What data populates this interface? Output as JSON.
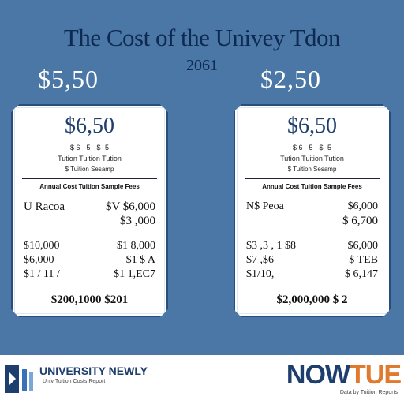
{
  "header": {
    "title": "The Cost of the Univey Tdon",
    "year": "2061",
    "left_total": "$5,50",
    "right_total": "$2,50"
  },
  "cards": [
    {
      "price": "$6,50",
      "sub1": "$ 6 · 5 · $ ·5",
      "sub2": "Tution Tuition Tution",
      "sub3": "$ Tuition Sesamp",
      "header": "Annual Cost Tuition Sample Fees",
      "rows": [
        {
          "a": "U Racoa",
          "b": "$V $6,000"
        },
        {
          "a": "",
          "b": "$3 ,000"
        },
        {
          "a": "$10,000",
          "b": "$1 8,000"
        },
        {
          "a": "$6,000",
          "b": "$1 $ A"
        },
        {
          "a": "$1 / 11 /",
          "b": "$1 1,EC7"
        }
      ],
      "total_a": "$200,1000",
      "total_b": "$201"
    },
    {
      "price": "$6,50",
      "sub1": "$ 6 · 5 · $ ·5",
      "sub2": "Tution Tuition Tution",
      "sub3": "$ Tuition Sesamp",
      "header": "Annual Cost Tuition Sample Fees",
      "rows": [
        {
          "a": "N$ Peoa",
          "b": "$6,000"
        },
        {
          "a": "",
          "b": "$ 6,700"
        },
        {
          "a": "$3 ,3 , 1 $8",
          "b": "$6,000"
        },
        {
          "a": "$7 ,$6",
          "b": "$ TEB"
        },
        {
          "a": "$1/10,",
          "b": "$ 6,147"
        }
      ],
      "total_a": "$2,000,000",
      "total_b": "$ 2"
    }
  ],
  "footer": {
    "left_brand": "UNIVERSITY NEWLY",
    "left_sub": "Univ Tuition Costs Report",
    "right_brand": "NOWTUE",
    "right_sub": "Data by Tuition Reports",
    "brand_color": "#1e3e6e",
    "accent_color": "#e07a2e"
  }
}
